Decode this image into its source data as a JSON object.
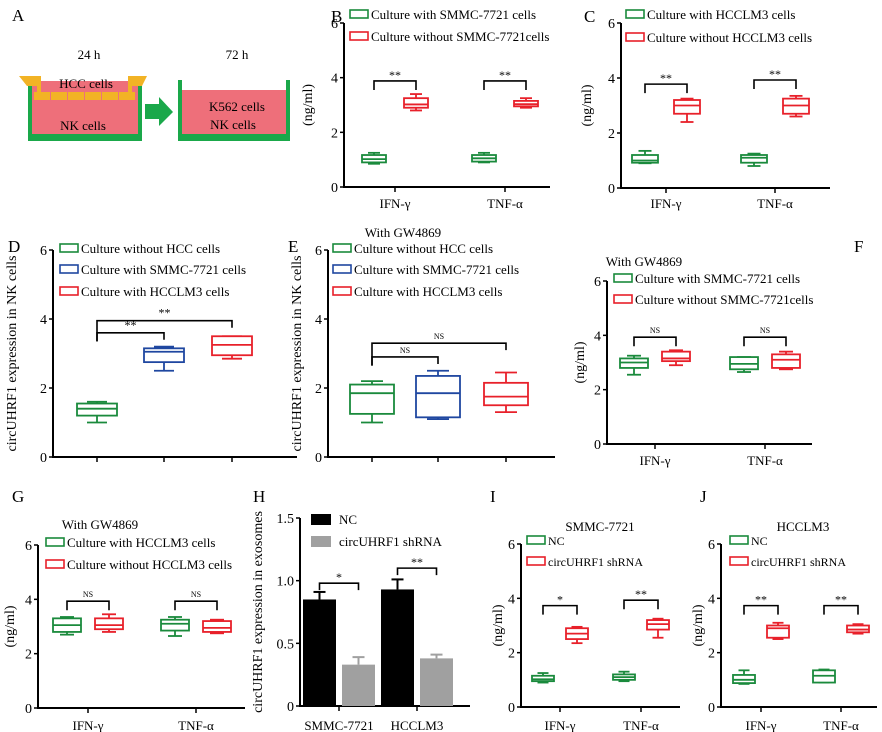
{
  "colors": {
    "green": "#1a8a3c",
    "blue": "#1f47a0",
    "red": "#e8202a",
    "black": "#000000",
    "gray": "#a0a0a0",
    "well_green": "#1aa84a",
    "medium_pink": "#ee6f7a",
    "insert_yellow": "#f2b325"
  },
  "panel_a": {
    "letter": "A",
    "left_time": "24 h",
    "right_time": "72 h",
    "left_top_label": "HCC cells",
    "left_bottom_label": "NK cells",
    "right_label_1": "K562 cells",
    "right_label_2": "NK cells"
  },
  "chart_data": [
    {
      "panel": "B",
      "type": "box",
      "title": "",
      "ylabel": "(ng/ml)",
      "ylim": [
        0,
        6
      ],
      "yticks": [
        0,
        2,
        4,
        6
      ],
      "categories": [
        "IFN-γ",
        "TNF-α"
      ],
      "series": [
        {
          "name": "Culture with SMMC-7721 cells",
          "color": "green",
          "boxes": [
            {
              "min": 0.85,
              "q1": 0.9,
              "median": 1.02,
              "q3": 1.17,
              "max": 1.25
            },
            {
              "min": 0.9,
              "q1": 0.93,
              "median": 1.05,
              "q3": 1.17,
              "max": 1.25
            }
          ]
        },
        {
          "name": "Culture without SMMC-7721cells",
          "color": "red",
          "boxes": [
            {
              "min": 2.8,
              "q1": 2.9,
              "median": 3.02,
              "q3": 3.25,
              "max": 3.4
            },
            {
              "min": 2.9,
              "q1": 2.95,
              "median": 3.03,
              "q3": 3.15,
              "max": 3.25
            }
          ]
        }
      ],
      "annotations": [
        {
          "category": 0,
          "text": "**",
          "y": 3.55
        },
        {
          "category": 1,
          "text": "**",
          "y": 3.55
        }
      ]
    },
    {
      "panel": "C",
      "type": "box",
      "title": "",
      "ylabel": "(ng/ml)",
      "ylim": [
        0,
        6
      ],
      "yticks": [
        0,
        2,
        4,
        6
      ],
      "categories": [
        "IFN-γ",
        "TNF-α"
      ],
      "series": [
        {
          "name": "Culture with HCCLM3 cells",
          "color": "green",
          "boxes": [
            {
              "min": 0.9,
              "q1": 0.92,
              "median": 1.0,
              "q3": 1.2,
              "max": 1.35
            },
            {
              "min": 0.8,
              "q1": 0.92,
              "median": 1.1,
              "q3": 1.2,
              "max": 1.25
            }
          ]
        },
        {
          "name": "Culture without HCCLM3 cells",
          "color": "red",
          "boxes": [
            {
              "min": 2.4,
              "q1": 2.7,
              "median": 3.0,
              "q3": 3.2,
              "max": 3.25
            },
            {
              "min": 2.6,
              "q1": 2.7,
              "median": 3.0,
              "q3": 3.25,
              "max": 3.35
            }
          ]
        }
      ],
      "annotations": [
        {
          "category": 0,
          "text": "**",
          "y": 3.45
        },
        {
          "category": 1,
          "text": "**",
          "y": 3.6
        }
      ]
    },
    {
      "panel": "D",
      "type": "box",
      "title": "",
      "ylabel": "circUHRF1 expression in NK cells",
      "ylim": [
        0,
        6
      ],
      "yticks": [
        0,
        2,
        4,
        6
      ],
      "categories": [
        "",
        "",
        ""
      ],
      "series": [
        {
          "name": "Culture without HCC cells",
          "color": "green",
          "boxes": [
            {
              "min": 1.0,
              "q1": 1.2,
              "median": 1.4,
              "q3": 1.55,
              "max": 1.6
            }
          ]
        },
        {
          "name": "Culture with SMMC-7721 cells",
          "color": "blue",
          "boxes": [
            {
              "min": 2.5,
              "q1": 2.75,
              "median": 3.05,
              "q3": 3.15,
              "max": 3.2
            }
          ]
        },
        {
          "name": "Culture with HCCLM3 cells",
          "color": "red",
          "boxes": [
            {
              "min": 2.85,
              "q1": 2.95,
              "median": 3.25,
              "q3": 3.5,
              "max": 3.5
            }
          ]
        }
      ],
      "comparisons": [
        {
          "from": 0,
          "to": 1,
          "text": "**",
          "y": 3.35,
          "top": 3.6
        },
        {
          "from": 0,
          "to": 2,
          "text": "**",
          "y": 3.35,
          "top": 3.95
        }
      ]
    },
    {
      "panel": "E",
      "type": "box",
      "title": "With GW4869",
      "ylabel": "circUHRF1 expression in NK cells",
      "ylim": [
        0,
        6
      ],
      "yticks": [
        0,
        2,
        4,
        6
      ],
      "categories": [
        "",
        "",
        ""
      ],
      "series": [
        {
          "name": "Culture without HCC cells",
          "color": "green",
          "boxes": [
            {
              "min": 1.0,
              "q1": 1.25,
              "median": 1.85,
              "q3": 2.1,
              "max": 2.2
            }
          ]
        },
        {
          "name": "Culture with SMMC-7721 cells",
          "color": "blue",
          "boxes": [
            {
              "min": 1.1,
              "q1": 1.15,
              "median": 1.85,
              "q3": 2.35,
              "max": 2.5
            }
          ]
        },
        {
          "name": "Culture with HCCLM3 cells",
          "color": "red",
          "boxes": [
            {
              "min": 1.3,
              "q1": 1.5,
              "median": 1.75,
              "q3": 2.15,
              "max": 2.45
            }
          ]
        }
      ],
      "comparisons": [
        {
          "from": 0,
          "to": 1,
          "text": "NS",
          "y": 2.65,
          "top": 2.9
        },
        {
          "from": 0,
          "to": 2,
          "text": "NS",
          "y": 2.65,
          "top": 3.3
        }
      ]
    },
    {
      "panel": "F",
      "type": "box",
      "title": "With GW4869",
      "ylabel": "(ng/ml)",
      "ylim": [
        0,
        6
      ],
      "yticks": [
        0,
        2,
        4,
        6
      ],
      "categories": [
        "IFN-γ",
        "TNF-α"
      ],
      "series": [
        {
          "name": "Culture with SMMC-7721 cells",
          "color": "green",
          "boxes": [
            {
              "min": 2.55,
              "q1": 2.8,
              "median": 3.0,
              "q3": 3.15,
              "max": 3.25
            },
            {
              "min": 2.65,
              "q1": 2.75,
              "median": 2.95,
              "q3": 3.2,
              "max": 3.2
            }
          ]
        },
        {
          "name": "Culture without SMMC-7721cells",
          "color": "red",
          "boxes": [
            {
              "min": 2.9,
              "q1": 3.05,
              "median": 3.15,
              "q3": 3.4,
              "max": 3.45
            },
            {
              "min": 2.75,
              "q1": 2.8,
              "median": 3.1,
              "q3": 3.3,
              "max": 3.4
            }
          ]
        }
      ],
      "annotations": [
        {
          "category": 0,
          "text": "NS",
          "y": 3.6
        },
        {
          "category": 1,
          "text": "NS",
          "y": 3.6
        }
      ]
    },
    {
      "panel": "G",
      "type": "box",
      "title": "With GW4869",
      "ylabel": "(ng/ml)",
      "ylim": [
        0,
        6
      ],
      "yticks": [
        0,
        2,
        4,
        6
      ],
      "categories": [
        "IFN-γ",
        "TNF-α"
      ],
      "series": [
        {
          "name": "Culture with HCCLM3 cells",
          "color": "green",
          "boxes": [
            {
              "min": 2.7,
              "q1": 2.8,
              "median": 3.05,
              "q3": 3.3,
              "max": 3.35
            },
            {
              "min": 2.65,
              "q1": 2.85,
              "median": 3.1,
              "q3": 3.25,
              "max": 3.35
            }
          ]
        },
        {
          "name": "Culture without HCCLM3 cells",
          "color": "red",
          "boxes": [
            {
              "min": 2.8,
              "q1": 2.9,
              "median": 3.05,
              "q3": 3.3,
              "max": 3.45
            },
            {
              "min": 2.75,
              "q1": 2.8,
              "median": 2.95,
              "q3": 3.2,
              "max": 3.25
            }
          ]
        }
      ],
      "annotations": [
        {
          "category": 0,
          "text": "NS",
          "y": 3.6
        },
        {
          "category": 1,
          "text": "NS",
          "y": 3.6
        }
      ]
    },
    {
      "panel": "H",
      "type": "bar",
      "title": "",
      "ylabel": "circUHRF1 expression in exosomes",
      "ylim": [
        0,
        1.5
      ],
      "yticks": [
        "0",
        "0.5",
        "1.0",
        "1.5"
      ],
      "ytick_values": [
        0,
        0.5,
        1.0,
        1.5
      ],
      "categories": [
        "SMMC-7721",
        "HCCLM3"
      ],
      "series": [
        {
          "name": "NC",
          "color": "black",
          "values": [
            0.85,
            0.93
          ],
          "errors": [
            0.06,
            0.08
          ]
        },
        {
          "name": "circUHRF1 shRNA",
          "color": "gray",
          "values": [
            0.33,
            0.38
          ],
          "errors": [
            0.06,
            0.03
          ]
        }
      ],
      "annotations": [
        {
          "category": 0,
          "text": "*",
          "y": 0.98
        },
        {
          "category": 1,
          "text": "**",
          "y": 1.1
        }
      ]
    },
    {
      "panel": "I",
      "type": "box",
      "title": "SMMC-7721",
      "ylabel": "(ng/ml)",
      "ylim": [
        0,
        6
      ],
      "yticks": [
        0,
        2,
        4,
        6
      ],
      "categories": [
        "IFN-γ",
        "TNF-α"
      ],
      "series": [
        {
          "name": "NC",
          "color": "green",
          "boxes": [
            {
              "min": 0.9,
              "q1": 0.95,
              "median": 1.02,
              "q3": 1.15,
              "max": 1.25
            },
            {
              "min": 0.95,
              "q1": 1.0,
              "median": 1.1,
              "q3": 1.2,
              "max": 1.3
            }
          ]
        },
        {
          "name": "circUHRF1 shRNA",
          "color": "red",
          "boxes": [
            {
              "min": 2.35,
              "q1": 2.5,
              "median": 2.7,
              "q3": 2.9,
              "max": 2.95
            },
            {
              "min": 2.55,
              "q1": 2.85,
              "median": 3.05,
              "q3": 3.2,
              "max": 3.25
            }
          ]
        }
      ],
      "annotations": [
        {
          "category": 0,
          "text": "*",
          "y": 3.4
        },
        {
          "category": 1,
          "text": "**",
          "y": 3.6
        }
      ]
    },
    {
      "panel": "J",
      "type": "box",
      "title": "HCCLM3",
      "ylabel": "(ng/ml)",
      "ylim": [
        0,
        6
      ],
      "yticks": [
        0,
        2,
        4,
        6
      ],
      "categories": [
        "IFN-γ",
        "TNF-α"
      ],
      "series": [
        {
          "name": "NC",
          "color": "green",
          "boxes": [
            {
              "min": 0.85,
              "q1": 0.88,
              "median": 1.0,
              "q3": 1.18,
              "max": 1.35
            },
            {
              "min": 0.9,
              "q1": 0.9,
              "median": 1.15,
              "q3": 1.35,
              "max": 1.38
            }
          ]
        },
        {
          "name": "circUHRF1 shRNA",
          "color": "red",
          "boxes": [
            {
              "min": 2.5,
              "q1": 2.55,
              "median": 2.9,
              "q3": 3.0,
              "max": 3.1
            },
            {
              "min": 2.7,
              "q1": 2.75,
              "median": 2.85,
              "q3": 3.0,
              "max": 3.05
            }
          ]
        }
      ],
      "annotations": [
        {
          "category": 0,
          "text": "**",
          "y": 3.4
        },
        {
          "category": 1,
          "text": "**",
          "y": 3.4
        }
      ]
    }
  ]
}
